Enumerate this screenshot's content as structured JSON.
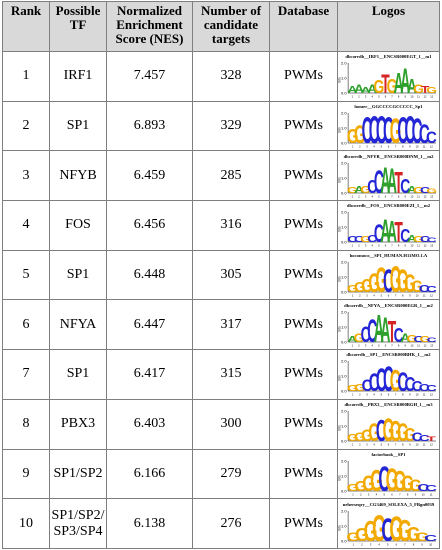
{
  "headers": {
    "rank": "Rank",
    "tf": "Possible TF",
    "nes": "Normalized Enrichment Score (NES)",
    "targets": "Number of candidate targets",
    "database": "Database",
    "logos": "Logos"
  },
  "colors": {
    "A": "#2ea02c",
    "C": "#2426d6",
    "G": "#f2a900",
    "T": "#d62424",
    "header_bg": "#d9d9d9"
  },
  "rows": [
    {
      "rank": "1",
      "tf": "IRF1",
      "nes": "7.457",
      "targets": "328",
      "db": "PWMs",
      "logo": {
        "title": "dbcorrdb__IRF1__ENCSR000EGT_1__m1",
        "seq": "AAAAGTGAAAGTG",
        "glyph_heights": [
          0.5,
          0.6,
          0.4,
          0.6,
          0.9,
          1.3,
          1.0,
          1.4,
          1.7,
          1.0,
          0.6,
          0.5,
          0.4
        ]
      }
    },
    {
      "rank": "2",
      "tf": "SP1",
      "nes": "6.893",
      "targets": "329",
      "db": "PWMs",
      "logo": {
        "title": "homer__GGCCCCGCCCCC_Sp1",
        "seq": "GGCCCCGCCCCC",
        "glyph_heights": [
          1.0,
          1.2,
          1.8,
          1.9,
          1.9,
          1.8,
          1.7,
          1.8,
          1.9,
          1.7,
          1.3,
          0.8
        ]
      }
    },
    {
      "rank": "3",
      "tf": "NFYB",
      "nes": "6.459",
      "targets": "285",
      "db": "PWMs",
      "logo": {
        "title": "dbcorrdb__NFYB__ENCSR000DNM_1__m2",
        "seq": "GAGCCAATCAGCG",
        "glyph_heights": [
          0.4,
          0.5,
          0.5,
          0.9,
          1.6,
          1.8,
          1.7,
          1.5,
          1.0,
          0.5,
          0.4,
          0.4,
          0.3
        ]
      }
    },
    {
      "rank": "4",
      "tf": "FOS",
      "nes": "6.456",
      "targets": "316",
      "db": "PWMs",
      "logo": {
        "title": "dbcorrdb__FOS__ENCSR000EZI_1__m2",
        "seq": "CCGCCAATCAGCC",
        "glyph_heights": [
          0.4,
          0.4,
          0.4,
          0.5,
          1.2,
          1.6,
          1.5,
          1.4,
          0.9,
          0.5,
          0.4,
          0.4,
          0.3
        ]
      }
    },
    {
      "rank": "5",
      "tf": "SP1",
      "nes": "6.448",
      "targets": "305",
      "db": "PWMs",
      "logo": {
        "title": "hocomoco__SP1_HUMAN.H11MO.1.A",
        "seq": "GGGGGCGGGGCC",
        "glyph_heights": [
          0.5,
          0.7,
          0.9,
          1.3,
          1.7,
          1.6,
          1.8,
          1.6,
          1.2,
          0.8,
          0.5,
          0.4
        ]
      }
    },
    {
      "rank": "6",
      "tf": "NFYA",
      "nes": "6.447",
      "targets": "317",
      "db": "PWMs",
      "logo": {
        "title": "dbcorrdb__NFYA__ENCSR000EGR_1__m2",
        "seq": "AGCCAATCAGCGC",
        "glyph_heights": [
          0.4,
          0.6,
          1.1,
          1.6,
          1.9,
          1.7,
          1.5,
          1.0,
          0.6,
          0.5,
          0.4,
          0.4,
          0.3
        ]
      }
    },
    {
      "rank": "7",
      "tf": "SP1",
      "nes": "6.417",
      "targets": "315",
      "db": "PWMs",
      "logo": {
        "title": "dbcorrdb__SP1__ENCSR000BHK_1__m2",
        "seq": "GGCCCCGCCCCC",
        "glyph_heights": [
          0.4,
          0.5,
          0.8,
          1.2,
          1.6,
          1.7,
          1.5,
          1.3,
          1.0,
          0.7,
          0.5,
          0.4
        ]
      }
    },
    {
      "rank": "8",
      "tf": "PBX3",
      "nes": "6.403",
      "targets": "300",
      "db": "PWMs",
      "logo": {
        "title": "dbcorrdb__PBX3__ENCSR000BGH_1__m3",
        "seq": "GGGGCGGGGCCT",
        "glyph_heights": [
          0.5,
          0.6,
          0.8,
          1.2,
          1.5,
          1.6,
          1.4,
          1.2,
          0.9,
          0.6,
          0.4,
          0.3
        ]
      }
    },
    {
      "rank": "9",
      "tf": "SP1/SP2",
      "nes": "6.166",
      "targets": "279",
      "db": "PWMs",
      "logo": {
        "title": "factorbook__SP1",
        "seq": "GGGGCGGGGCC",
        "glyph_heights": [
          0.5,
          0.7,
          1.1,
          1.5,
          1.7,
          1.6,
          1.4,
          1.1,
          0.8,
          0.5,
          0.4
        ]
      }
    },
    {
      "rank": "10",
      "tf": "SP1/SP2/\nSP3/SP4",
      "nes": "6.138",
      "targets": "276",
      "db": "PWMs",
      "logo": {
        "title": "neherseqry__CG3469_SOLEXA_5_FBgn0039",
        "seq": "GGGGCGGGGC",
        "glyph_heights": [
          0.6,
          0.9,
          1.4,
          1.8,
          1.6,
          1.7,
          1.5,
          1.0,
          0.6,
          0.4
        ]
      }
    }
  ]
}
